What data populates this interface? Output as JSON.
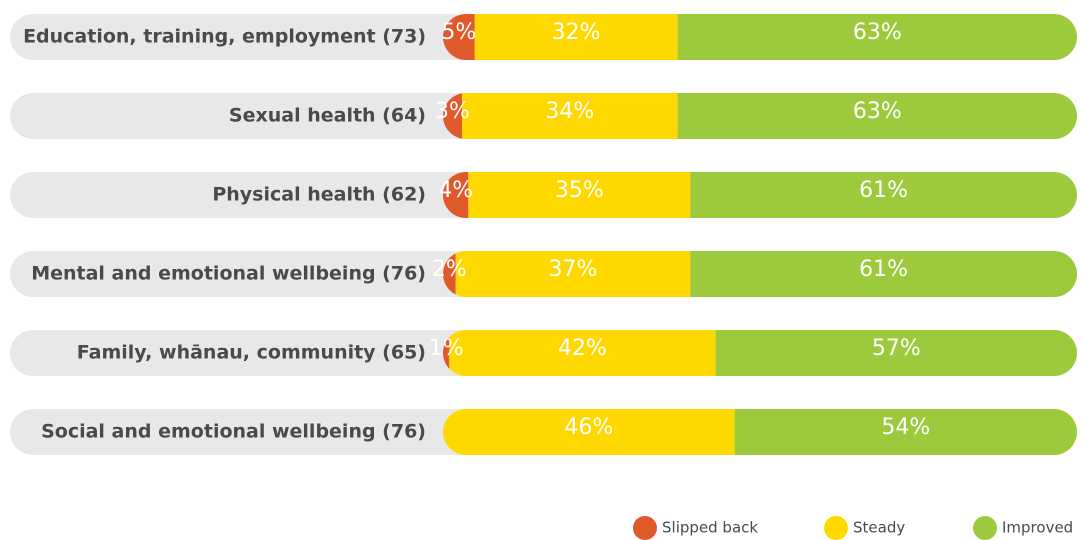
{
  "chart_data": {
    "type": "bar",
    "orientation": "horizontal",
    "stacked": true,
    "categories": [
      "Education, training, employment (73)",
      "Sexual health (64)",
      "Physical health (62)",
      "Mental and emotional wellbeing (76)",
      "Family, whānau, community (65)",
      "Social and emotional wellbeing (76)"
    ],
    "series": [
      {
        "name": "Slipped back",
        "color": "#e0592a",
        "values": [
          5,
          3,
          4,
          2,
          1,
          0
        ],
        "value_labels": [
          "5%",
          "3%",
          "4%",
          "2%",
          "1%",
          null
        ]
      },
      {
        "name": "Steady",
        "color": "#ffd800",
        "values": [
          32,
          34,
          35,
          37,
          42,
          46
        ],
        "value_labels": [
          "32%",
          "34%",
          "35%",
          "37%",
          "42%",
          "46%"
        ]
      },
      {
        "name": "Improved",
        "color": "#9dca3c",
        "values": [
          63,
          63,
          61,
          61,
          57,
          54
        ],
        "value_labels": [
          "63%",
          "63%",
          "61%",
          "61%",
          "57%",
          "54%"
        ]
      }
    ],
    "xlim": [
      0,
      100
    ],
    "legend": "bottom-right"
  }
}
